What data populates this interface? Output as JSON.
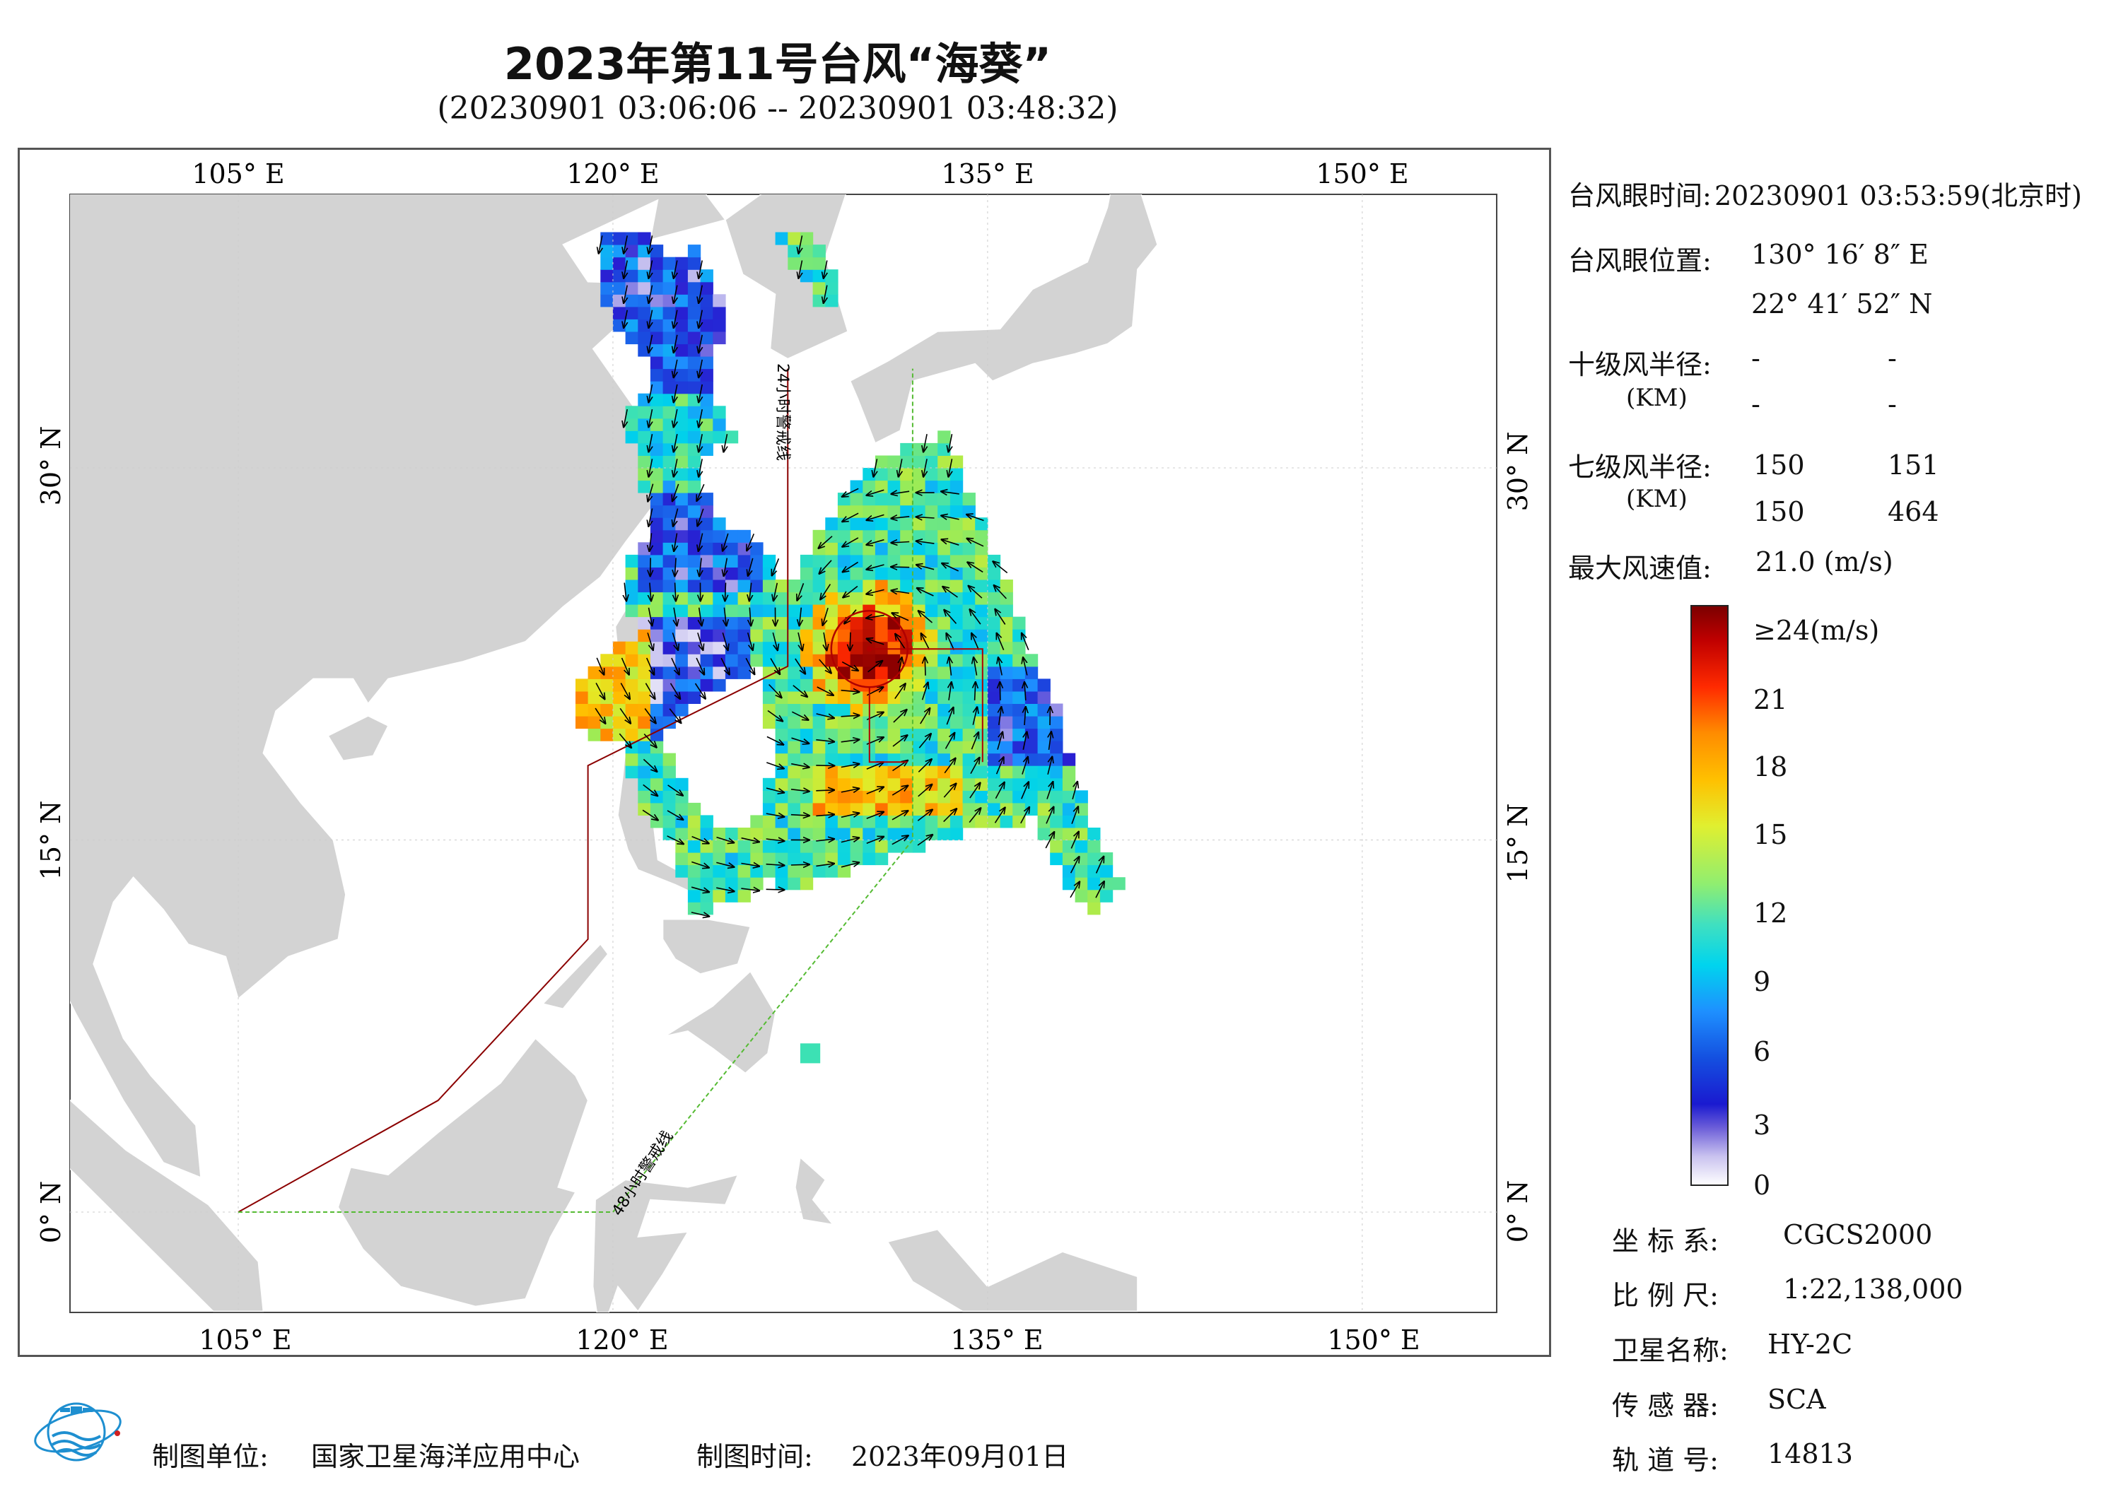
{
  "title": "2023年第11号台风“海葵”",
  "subtitle": "(20230901 03:06:06 -- 20230901 03:48:32)",
  "map": {
    "lon_labels": [
      "105° E",
      "120° E",
      "135° E",
      "150° E"
    ],
    "lat_labels": [
      "30° N",
      "15° N",
      "0° N"
    ],
    "line_24h": "24小时警戒线",
    "line_48h": "48小时警戒线",
    "colors": {
      "land": "#d3d3d3",
      "sea": "#ffffff",
      "warn24": "#8b0000",
      "warn48": "#55bb33",
      "grid": "#cccccc"
    }
  },
  "info": {
    "eye_time_label": "台风眼时间:",
    "eye_time_value": "20230901 03:53:59(北京时)",
    "eye_pos_label": "台风眼位置:",
    "eye_lon": "130° 16′ 8″ E",
    "eye_lat": "22° 41′ 52″ N",
    "r10_label": "十级风半径:",
    "r10_unit": "(KM)",
    "r10_values": [
      "-",
      "-",
      "-",
      "-"
    ],
    "r7_label": "七级风半径:",
    "r7_unit": "(KM)",
    "r7_values": [
      "150",
      "151",
      "150",
      "464"
    ],
    "max_wind_label": "最大风速值:",
    "max_wind_value": "21.0  (m/s)"
  },
  "colorbar": {
    "ticks": [
      "≥24(m/s)",
      "21",
      "18",
      "15",
      "12",
      "9",
      "6",
      "3",
      "0"
    ]
  },
  "meta": {
    "coord_label": "坐 标 系:",
    "coord_value": "CGCS2000",
    "scale_label": "比 例 尺:",
    "scale_value": "1:22,138,000",
    "sat_label": "卫星名称:",
    "sat_value": "HY-2C",
    "sensor_label": "传 感 器:",
    "sensor_value": "SCA",
    "orbit_label": "轨 道 号:",
    "orbit_value": "14813"
  },
  "footer": {
    "org_label": "制图单位:",
    "org_value": "国家卫星海洋应用中心",
    "date_label": "制图时间:",
    "date_value": "2023年09月01日"
  }
}
